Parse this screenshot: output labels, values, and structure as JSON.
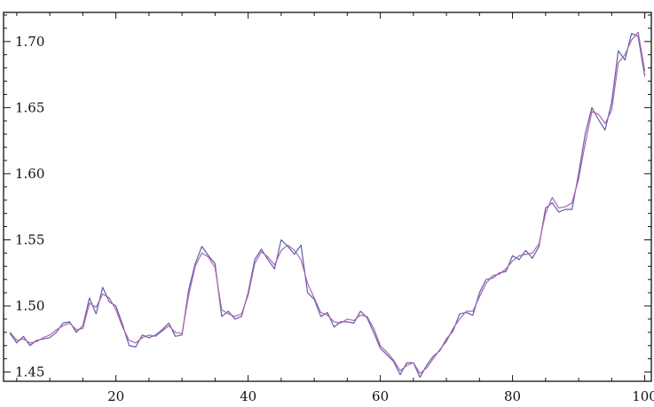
{
  "chart_data": {
    "type": "line",
    "title": "",
    "xlabel": "",
    "ylabel": "",
    "xlim": [
      3,
      101
    ],
    "ylim": [
      1.443,
      1.722
    ],
    "x_ticks": [
      20,
      40,
      60,
      80,
      100
    ],
    "y_ticks": [
      1.45,
      1.5,
      1.55,
      1.6,
      1.65,
      1.7
    ],
    "x_tick_labels": [
      "20",
      "40",
      "60",
      "80",
      "100"
    ],
    "y_tick_labels": [
      "1.45",
      "1.50",
      "1.55",
      "1.60",
      "1.65",
      "1.70"
    ],
    "grid": false,
    "legend": "none",
    "x": [
      4,
      5,
      6,
      7,
      8,
      9,
      10,
      11,
      12,
      13,
      14,
      15,
      16,
      17,
      18,
      19,
      20,
      21,
      22,
      23,
      24,
      25,
      26,
      27,
      28,
      29,
      30,
      31,
      32,
      33,
      34,
      35,
      36,
      37,
      38,
      39,
      40,
      41,
      42,
      43,
      44,
      45,
      46,
      47,
      48,
      49,
      50,
      51,
      52,
      53,
      54,
      55,
      56,
      57,
      58,
      59,
      60,
      61,
      62,
      63,
      64,
      65,
      66,
      67,
      68,
      69,
      70,
      71,
      72,
      73,
      74,
      75,
      76,
      77,
      78,
      79,
      80,
      81,
      82,
      83,
      84,
      85,
      86,
      87,
      88,
      89,
      90,
      91,
      92,
      93,
      94,
      95,
      96,
      97,
      98,
      99,
      100
    ],
    "series": [
      {
        "color": "#5b5fa8",
        "values": [
          1.479,
          1.472,
          1.477,
          1.47,
          1.474,
          1.475,
          1.476,
          1.48,
          1.487,
          1.488,
          1.48,
          1.485,
          1.506,
          1.494,
          1.514,
          1.503,
          1.5,
          1.486,
          1.47,
          1.469,
          1.478,
          1.476,
          1.478,
          1.482,
          1.487,
          1.477,
          1.478,
          1.512,
          1.532,
          1.545,
          1.538,
          1.532,
          1.492,
          1.496,
          1.49,
          1.492,
          1.51,
          1.535,
          1.543,
          1.535,
          1.528,
          1.55,
          1.545,
          1.539,
          1.546,
          1.51,
          1.505,
          1.492,
          1.495,
          1.484,
          1.488,
          1.488,
          1.487,
          1.496,
          1.491,
          1.48,
          1.468,
          1.463,
          1.458,
          1.448,
          1.457,
          1.457,
          1.446,
          1.455,
          1.462,
          1.466,
          1.475,
          1.481,
          1.494,
          1.495,
          1.493,
          1.51,
          1.52,
          1.521,
          1.525,
          1.526,
          1.538,
          1.535,
          1.542,
          1.536,
          1.545,
          1.574,
          1.578,
          1.571,
          1.573,
          1.573,
          1.6,
          1.63,
          1.65,
          1.641,
          1.633,
          1.654,
          1.693,
          1.686,
          1.706,
          1.704,
          1.674
        ]
      },
      {
        "color": "#b064ad",
        "values": [
          1.48,
          1.474,
          1.475,
          1.472,
          1.473,
          1.476,
          1.478,
          1.482,
          1.485,
          1.487,
          1.482,
          1.483,
          1.502,
          1.499,
          1.509,
          1.506,
          1.497,
          1.484,
          1.474,
          1.472,
          1.476,
          1.478,
          1.477,
          1.481,
          1.485,
          1.48,
          1.479,
          1.508,
          1.53,
          1.54,
          1.537,
          1.529,
          1.497,
          1.494,
          1.492,
          1.494,
          1.508,
          1.532,
          1.541,
          1.537,
          1.531,
          1.542,
          1.546,
          1.542,
          1.535,
          1.517,
          1.506,
          1.495,
          1.493,
          1.488,
          1.487,
          1.49,
          1.489,
          1.493,
          1.492,
          1.483,
          1.47,
          1.465,
          1.459,
          1.451,
          1.455,
          1.457,
          1.449,
          1.453,
          1.46,
          1.467,
          1.473,
          1.483,
          1.49,
          1.496,
          1.496,
          1.507,
          1.517,
          1.523,
          1.524,
          1.528,
          1.534,
          1.538,
          1.539,
          1.54,
          1.547,
          1.57,
          1.582,
          1.574,
          1.575,
          1.578,
          1.596,
          1.623,
          1.647,
          1.645,
          1.638,
          1.648,
          1.684,
          1.69,
          1.701,
          1.707,
          1.678
        ]
      }
    ]
  }
}
